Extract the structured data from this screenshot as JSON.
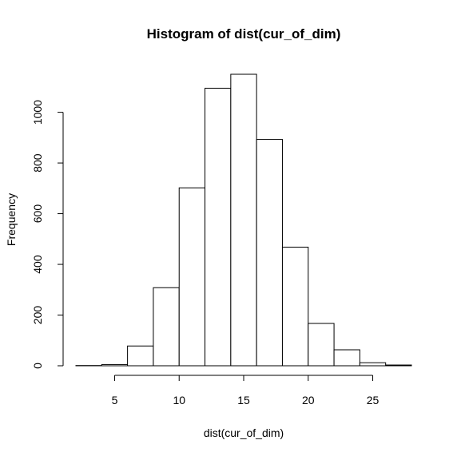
{
  "chart_data": {
    "type": "bar",
    "title": "Histogram of dist(cur_of_dim)",
    "xlabel": "dist(cur_of_dim)",
    "ylabel": "Frequency",
    "bin_edges": [
      2,
      4,
      6,
      8,
      10,
      12,
      14,
      16,
      18,
      20,
      22,
      24,
      26,
      28
    ],
    "values": [
      1,
      5,
      78,
      308,
      702,
      1095,
      1150,
      893,
      468,
      167,
      63,
      12,
      3
    ],
    "xticks": [
      5,
      10,
      15,
      20,
      25
    ],
    "yticks": [
      0,
      200,
      400,
      600,
      800,
      1000
    ],
    "xlim": [
      2,
      28
    ],
    "ylim": [
      0,
      1150
    ],
    "grid": false,
    "bar_fill": "#ffffff",
    "bar_stroke": "#000000"
  }
}
